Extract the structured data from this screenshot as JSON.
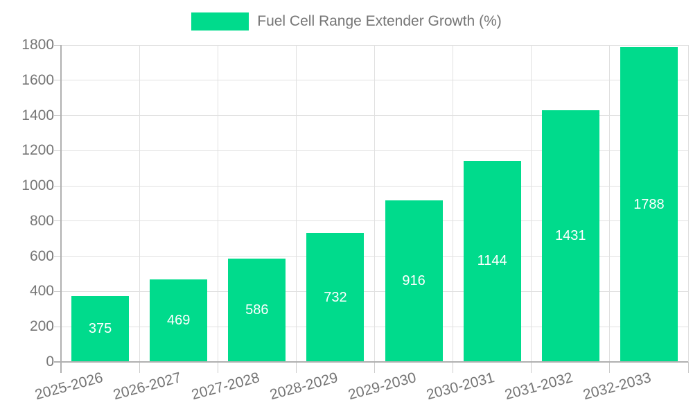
{
  "chart_data": {
    "type": "bar",
    "title": "Fuel Cell Range Extender Growth (%)",
    "legend_position": "top",
    "categories": [
      "2025-2026",
      "2026-2027",
      "2027-2028",
      "2028-2029",
      "2029-2030",
      "2030-2031",
      "2031-2032",
      "2032-2033"
    ],
    "values": [
      375,
      469,
      586,
      732,
      916,
      1144,
      1431,
      1788
    ],
    "value_labels": [
      "375",
      "469",
      "586",
      "732",
      "916",
      "1144",
      "1431",
      "1788"
    ],
    "xlabel": "",
    "ylabel": "",
    "ylim": [
      0,
      1800
    ],
    "ytick_step": 200,
    "yticks": [
      0,
      200,
      400,
      600,
      800,
      1000,
      1200,
      1400,
      1600,
      1800
    ],
    "grid": true,
    "colors": {
      "bar": "#00DB8C",
      "value_label": "#ffffff",
      "axis_text": "#757575",
      "grid_line": "#e0e0e0",
      "axis_line": "#b0b0b0",
      "tick_line": "#cccccc",
      "background": "#ffffff"
    }
  }
}
